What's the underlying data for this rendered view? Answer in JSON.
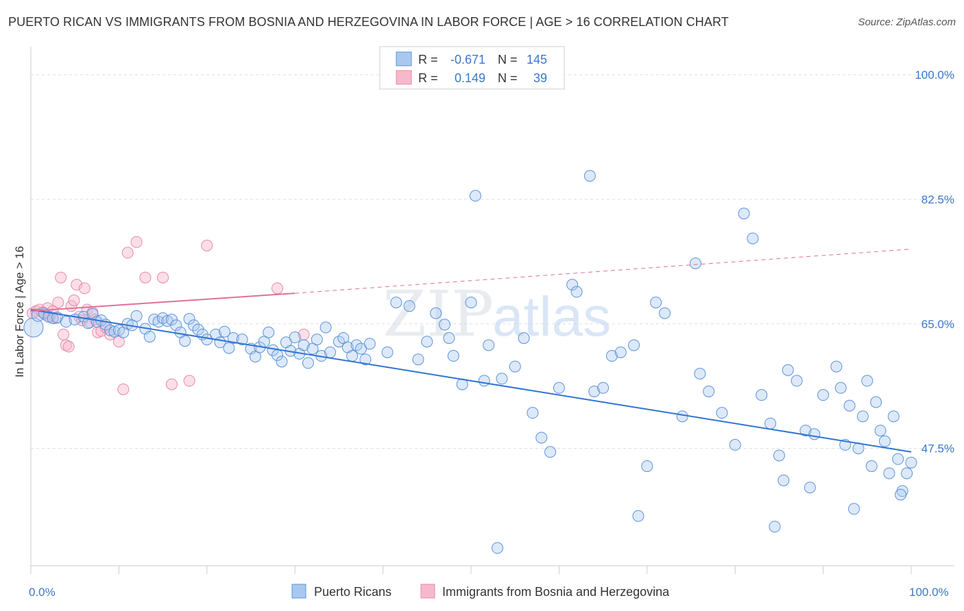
{
  "title": "PUERTO RICAN VS IMMIGRANTS FROM BOSNIA AND HERZEGOVINA IN LABOR FORCE | AGE > 16 CORRELATION CHART",
  "source": "Source: ZipAtlas.com",
  "colors": {
    "blue_fill": "#a9c8f0",
    "blue_stroke": "#5b93d8",
    "blue_line": "#2f74d0",
    "pink_fill": "#f6b9cc",
    "pink_stroke": "#e88aa8",
    "pink_line": "#e0709a",
    "grid": "#dddddd",
    "axis_text": "#3a78c9"
  },
  "legend": {
    "rows": [
      {
        "r_label": "R =",
        "r_value": "-0.671",
        "n_label": "N =",
        "n_value": "145"
      },
      {
        "r_label": "R =",
        "r_value": "0.149",
        "n_label": "N =",
        "n_value": "39"
      }
    ]
  },
  "chart_data": {
    "type": "scatter",
    "title": "PUERTO RICAN VS IMMIGRANTS FROM BOSNIA AND HERZEGOVINA IN LABOR FORCE | AGE > 16 CORRELATION CHART",
    "xlabel": "",
    "ylabel": "In Labor Force | Age > 16",
    "xlim": [
      0,
      100
    ],
    "ylim": [
      31,
      103
    ],
    "x_tick_labels": [
      "0.0%",
      "100.0%"
    ],
    "y_ticks": [
      {
        "value": 100.0,
        "label": "100.0%"
      },
      {
        "value": 82.5,
        "label": "82.5%"
      },
      {
        "value": 65.0,
        "label": "65.0%"
      },
      {
        "value": 47.5,
        "label": "47.5%"
      }
    ],
    "grid": "horizontal dashed",
    "legend_placement": "top-center",
    "series": [
      {
        "name": "Puerto Ricans",
        "color": "#5b93d8",
        "trend": {
          "x": [
            0,
            100
          ],
          "y": [
            67.0,
            47.0
          ],
          "style": "solid"
        },
        "points": [
          [
            0.3,
            64.5,
            14
          ],
          [
            0.8,
            66.2,
            9
          ],
          [
            1.5,
            66.5,
            8
          ],
          [
            2.0,
            66.0,
            8
          ],
          [
            2.5,
            65.8,
            8
          ],
          [
            3.0,
            65.9,
            8
          ],
          [
            4.0,
            65.3,
            8
          ],
          [
            5.0,
            65.6,
            8
          ],
          [
            6.0,
            66.0,
            8
          ],
          [
            6.5,
            65.1,
            8
          ],
          [
            7.0,
            66.4,
            8
          ],
          [
            7.5,
            65.3,
            8
          ],
          [
            8.0,
            65.5,
            8
          ],
          [
            8.5,
            64.9,
            8
          ],
          [
            9.0,
            64.1,
            8
          ],
          [
            9.5,
            63.9,
            8
          ],
          [
            10.0,
            64.1,
            8
          ],
          [
            10.5,
            63.8,
            8
          ],
          [
            11.0,
            65.0,
            8
          ],
          [
            11.5,
            64.8,
            8
          ],
          [
            12.0,
            66.1,
            8
          ],
          [
            13.0,
            64.3,
            8
          ],
          [
            13.5,
            63.2,
            8
          ],
          [
            14.0,
            65.6,
            8
          ],
          [
            14.5,
            65.3,
            8
          ],
          [
            15.0,
            65.8,
            8
          ],
          [
            15.5,
            65.4,
            8
          ],
          [
            16.0,
            65.6,
            8
          ],
          [
            16.5,
            64.8,
            8
          ],
          [
            17.0,
            63.8,
            8
          ],
          [
            17.5,
            62.6,
            8
          ],
          [
            18.0,
            65.7,
            8
          ],
          [
            18.5,
            64.8,
            8
          ],
          [
            19.0,
            64.2,
            8
          ],
          [
            19.5,
            63.5,
            8
          ],
          [
            20.0,
            62.8,
            8
          ],
          [
            21.0,
            63.5,
            8
          ],
          [
            21.5,
            62.4,
            8
          ],
          [
            22.0,
            63.9,
            8
          ],
          [
            22.5,
            61.6,
            8
          ],
          [
            23.0,
            63.0,
            8
          ],
          [
            24.0,
            62.8,
            8
          ],
          [
            25.0,
            61.5,
            8
          ],
          [
            25.5,
            60.4,
            8
          ],
          [
            26.0,
            61.7,
            8
          ],
          [
            26.5,
            62.5,
            8
          ],
          [
            27.0,
            63.8,
            8
          ],
          [
            27.5,
            61.3,
            8
          ],
          [
            28.0,
            60.6,
            8
          ],
          [
            28.5,
            59.7,
            8
          ],
          [
            29.0,
            62.4,
            8
          ],
          [
            29.5,
            61.2,
            8
          ],
          [
            30.0,
            63.1,
            8
          ],
          [
            30.5,
            60.8,
            8
          ],
          [
            31.0,
            62.0,
            8
          ],
          [
            31.5,
            59.5,
            8
          ],
          [
            32.0,
            61.5,
            8
          ],
          [
            32.5,
            62.8,
            8
          ],
          [
            33.0,
            60.5,
            8
          ],
          [
            33.5,
            64.5,
            8
          ],
          [
            34.0,
            61.0,
            8
          ],
          [
            35.0,
            62.5,
            8
          ],
          [
            35.5,
            63.0,
            8
          ],
          [
            36.0,
            61.7,
            8
          ],
          [
            36.5,
            60.5,
            8
          ],
          [
            37.0,
            62.0,
            8
          ],
          [
            37.5,
            61.5,
            8
          ],
          [
            38.0,
            60.0,
            8
          ],
          [
            38.5,
            62.2,
            8
          ],
          [
            40.5,
            61.0,
            8
          ],
          [
            41.5,
            68.0,
            8
          ],
          [
            43.0,
            67.5,
            8
          ],
          [
            44.0,
            60.0,
            8
          ],
          [
            45.0,
            62.5,
            8
          ],
          [
            46.0,
            66.5,
            8
          ],
          [
            47.0,
            64.9,
            8
          ],
          [
            47.5,
            63.0,
            8
          ],
          [
            48.0,
            60.5,
            8
          ],
          [
            49.0,
            56.5,
            8
          ],
          [
            50.0,
            68.0,
            8
          ],
          [
            50.5,
            83.0,
            8
          ],
          [
            51.5,
            57.0,
            8
          ],
          [
            52.0,
            62.0,
            8
          ],
          [
            53.5,
            57.3,
            8
          ],
          [
            55.0,
            59.0,
            8
          ],
          [
            56.0,
            63.0,
            8
          ],
          [
            57.0,
            52.5,
            8
          ],
          [
            58.0,
            49.0,
            8
          ],
          [
            59.0,
            47.0,
            8
          ],
          [
            60.0,
            56.0,
            8
          ],
          [
            61.5,
            70.5,
            8
          ],
          [
            62.0,
            69.5,
            8
          ],
          [
            63.5,
            85.8,
            8
          ],
          [
            64.0,
            55.5,
            8
          ],
          [
            65.0,
            56.0,
            8
          ],
          [
            66.0,
            60.5,
            8
          ],
          [
            67.0,
            61.0,
            8
          ],
          [
            68.5,
            62.0,
            8
          ],
          [
            69.0,
            38.0,
            8
          ],
          [
            70.0,
            45.0,
            8
          ],
          [
            71.0,
            68.0,
            8
          ],
          [
            72.0,
            66.5,
            8
          ],
          [
            74.0,
            52.0,
            8
          ],
          [
            75.5,
            73.5,
            8
          ],
          [
            76.0,
            58.0,
            8
          ],
          [
            77.0,
            55.5,
            8
          ],
          [
            78.5,
            52.5,
            8
          ],
          [
            80.0,
            48.0,
            8
          ],
          [
            81.0,
            80.5,
            8
          ],
          [
            82.0,
            77.0,
            8
          ],
          [
            83.0,
            55.0,
            8
          ],
          [
            84.0,
            51.0,
            8
          ],
          [
            85.0,
            46.5,
            8
          ],
          [
            86.0,
            58.5,
            8
          ],
          [
            87.0,
            57.0,
            8
          ],
          [
            88.0,
            50.0,
            8
          ],
          [
            89.0,
            49.5,
            8
          ],
          [
            90.0,
            55.0,
            8
          ],
          [
            91.5,
            59.0,
            8
          ],
          [
            92.0,
            56.0,
            8
          ],
          [
            93.0,
            53.5,
            8
          ],
          [
            94.0,
            47.5,
            8
          ],
          [
            94.5,
            52.0,
            8
          ],
          [
            95.0,
            57.0,
            8
          ],
          [
            96.0,
            54.0,
            8
          ],
          [
            97.0,
            48.5,
            8
          ],
          [
            98.0,
            52.0,
            8
          ],
          [
            98.5,
            46.0,
            8
          ],
          [
            99.0,
            41.5,
            8
          ],
          [
            99.5,
            44.0,
            8
          ],
          [
            100.0,
            45.5,
            8
          ],
          [
            88.5,
            42.0,
            8
          ],
          [
            84.5,
            36.5,
            8
          ],
          [
            93.5,
            39.0,
            8
          ],
          [
            85.5,
            43.0,
            8
          ],
          [
            95.5,
            45.0,
            8
          ],
          [
            92.5,
            48.0,
            8
          ],
          [
            96.5,
            50.0,
            8
          ],
          [
            97.5,
            44.0,
            8
          ],
          [
            98.8,
            41.0,
            8
          ],
          [
            53.0,
            33.5,
            8
          ]
        ]
      },
      {
        "name": "Immigrants from Bosnia and Herzegovina",
        "color": "#e88aa8",
        "trend": {
          "x": [
            0,
            30,
            100
          ],
          "y": [
            66.8,
            69.3,
            75.5
          ],
          "style": "solid-then-dashed"
        },
        "points": [
          [
            0.2,
            66.5,
            8
          ],
          [
            0.6,
            66.8,
            8
          ],
          [
            1.0,
            67.0,
            8
          ],
          [
            1.3,
            66.6,
            8
          ],
          [
            1.6,
            66.3,
            8
          ],
          [
            1.9,
            67.2,
            8
          ],
          [
            2.2,
            66.0,
            8
          ],
          [
            2.5,
            66.8,
            8
          ],
          [
            2.8,
            65.8,
            8
          ],
          [
            3.1,
            68.0,
            8
          ],
          [
            3.4,
            71.5,
            8
          ],
          [
            3.7,
            63.5,
            8
          ],
          [
            4.0,
            62.0,
            8
          ],
          [
            4.3,
            61.8,
            8
          ],
          [
            4.6,
            67.5,
            8
          ],
          [
            4.9,
            68.3,
            8
          ],
          [
            5.2,
            70.5,
            8
          ],
          [
            5.5,
            66.0,
            8
          ],
          [
            5.8,
            65.5,
            8
          ],
          [
            6.1,
            70.0,
            8
          ],
          [
            6.4,
            67.0,
            8
          ],
          [
            6.7,
            65.2,
            8
          ],
          [
            7.0,
            66.6,
            8
          ],
          [
            7.3,
            65.6,
            8
          ],
          [
            7.6,
            63.8,
            8
          ],
          [
            8.0,
            64.0,
            8
          ],
          [
            8.5,
            64.5,
            8
          ],
          [
            9.0,
            63.5,
            8
          ],
          [
            10.0,
            62.5,
            8
          ],
          [
            10.5,
            55.8,
            8
          ],
          [
            11.0,
            75.0,
            8
          ],
          [
            12.0,
            76.5,
            8
          ],
          [
            13.0,
            71.5,
            8
          ],
          [
            15.0,
            71.5,
            8
          ],
          [
            16.0,
            56.5,
            8
          ],
          [
            18.0,
            57.0,
            8
          ],
          [
            20.0,
            76.0,
            8
          ],
          [
            28.0,
            70.0,
            8
          ],
          [
            31.0,
            63.5,
            8
          ]
        ]
      }
    ]
  },
  "watermark": {
    "zip": "ZIP",
    "atlas": "atlas"
  },
  "bottom_legend": [
    {
      "label": "Puerto Ricans"
    },
    {
      "label": "Immigrants from Bosnia and Herzegovina"
    }
  ]
}
